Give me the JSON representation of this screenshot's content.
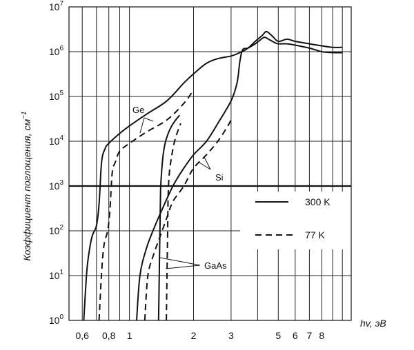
{
  "chart_data": {
    "type": "line",
    "xscale": "log",
    "yscale": "log",
    "xlim": [
      0.52,
      11
    ],
    "ylim": [
      1,
      10000000
    ],
    "grid": true,
    "xlabel": "hv, эВ",
    "ylabel": "Коэффициент поглощения, см",
    "ylabel_sup": "−1",
    "x_ticks": [
      0.6,
      0.8,
      1,
      2,
      3,
      5,
      6,
      7,
      8
    ],
    "x_tick_labels": [
      "0,6",
      "0,8",
      "1",
      "2",
      "3",
      "5",
      "6",
      "7",
      "8"
    ],
    "x_gridlines": [
      0.6,
      0.7,
      0.8,
      0.9,
      1,
      2,
      3,
      4,
      5,
      6,
      7,
      8,
      9,
      10
    ],
    "y_ticks": [
      1,
      10,
      100,
      1000,
      10000,
      100000,
      1000000,
      10000000
    ],
    "y_tick_base": "10",
    "y_tick_exps": [
      "0",
      "1",
      "2",
      "3",
      "4",
      "5",
      "6",
      "7"
    ],
    "reference_line": {
      "y": 1000
    },
    "legend": {
      "position": "right",
      "entries": [
        {
          "label": "300 K",
          "style": "solid"
        },
        {
          "label": "77 K",
          "style": "dashed"
        }
      ]
    },
    "annotations": [
      {
        "text": "Ge",
        "series": "Ge"
      },
      {
        "text": "Si",
        "series": "Si"
      },
      {
        "text": "GaAs",
        "series": "GaAs"
      }
    ],
    "series": [
      {
        "name": "Ge",
        "temperature": "300 K",
        "style": "solid",
        "x": [
          0.61,
          0.63,
          0.65,
          0.67,
          0.7,
          0.72,
          0.74,
          0.77,
          0.8,
          0.9,
          1.0,
          1.2,
          1.5,
          1.8,
          2.0,
          2.3,
          2.6,
          3.0,
          3.3,
          3.6,
          3.9,
          4.2,
          4.4,
          4.7,
          5.0,
          5.5,
          6.0,
          7.0,
          8.0,
          9.0,
          10.0
        ],
        "y": [
          1,
          12,
          40,
          80,
          130,
          400,
          3500,
          7000,
          9000,
          15000,
          22000,
          40000,
          80000,
          200000,
          320000,
          550000,
          700000,
          800000,
          950000,
          1200000,
          1700000,
          2300000,
          2800000,
          2200000,
          1700000,
          1900000,
          1700000,
          1500000,
          1350000,
          1250000,
          1250000
        ]
      },
      {
        "name": "Ge",
        "temperature": "77 K",
        "style": "dashed",
        "x": [
          0.72,
          0.74,
          0.76,
          0.79,
          0.81,
          0.83,
          0.86,
          0.9,
          1.0,
          1.2,
          1.5,
          1.8,
          2.0
        ],
        "y": [
          1,
          12,
          50,
          100,
          300,
          2000,
          3500,
          6000,
          9000,
          16000,
          30000,
          70000,
          140000
        ]
      },
      {
        "name": "Si",
        "temperature": "300 K",
        "style": "solid",
        "x": [
          1.08,
          1.12,
          1.2,
          1.3,
          1.4,
          1.6,
          1.8,
          2.0,
          2.3,
          2.6,
          3.0,
          3.2,
          3.3,
          3.4,
          3.6,
          3.9,
          4.1,
          4.3,
          4.5,
          4.8,
          5.0,
          5.5,
          6.0,
          7.0,
          8.0,
          9.0,
          10.0
        ],
        "y": [
          1,
          10,
          40,
          110,
          250,
          1000,
          2500,
          5000,
          10000,
          25000,
          80000,
          200000,
          600000,
          1100000,
          1200000,
          1500000,
          1800000,
          2100000,
          1900000,
          1600000,
          1500000,
          1500000,
          1400000,
          1200000,
          1000000,
          950000,
          950000
        ]
      },
      {
        "name": "Si",
        "temperature": "77 K",
        "style": "dashed",
        "x": [
          1.18,
          1.22,
          1.3,
          1.4,
          1.5,
          1.6,
          1.8,
          2.0,
          2.3,
          2.6,
          2.9,
          3.0
        ],
        "y": [
          1,
          10,
          30,
          80,
          200,
          450,
          1000,
          2500,
          5000,
          10000,
          22000,
          30000
        ]
      },
      {
        "name": "GaAs",
        "temperature": "300 K",
        "style": "solid",
        "x": [
          1.37,
          1.38,
          1.39,
          1.4,
          1.42,
          1.44,
          1.47,
          1.52,
          1.58,
          1.65,
          1.72
        ],
        "y": [
          1,
          10,
          100,
          800,
          2500,
          5000,
          9000,
          15000,
          22000,
          30000,
          38000
        ]
      },
      {
        "name": "GaAs",
        "temperature": "77 K",
        "style": "dashed",
        "x": [
          1.49,
          1.5,
          1.51,
          1.52,
          1.54,
          1.57,
          1.62,
          1.68,
          1.74
        ],
        "y": [
          1,
          10,
          80,
          700,
          2000,
          4000,
          9000,
          16000,
          25000
        ]
      }
    ]
  }
}
